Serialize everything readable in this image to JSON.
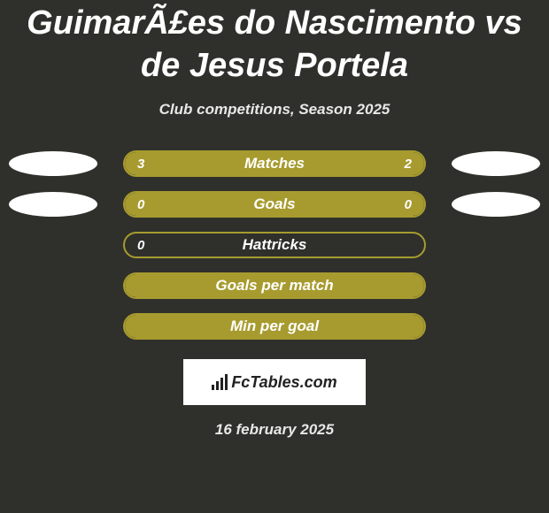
{
  "title": "GuimarÃ£es do Nascimento vs de Jesus Portela",
  "subtitle": "Club competitions, Season 2025",
  "date": "16 february 2025",
  "logo_text": "FcTables.com",
  "colors": {
    "background": "#2f302b",
    "accent": "#a79b2f",
    "oval": "#ffffff",
    "text": "#ffffff"
  },
  "stats": [
    {
      "label": "Matches",
      "left_value": "3",
      "right_value": "2",
      "left_fill_pct": 55,
      "right_fill_pct": 45,
      "show_left_oval": true,
      "show_right_oval": true,
      "fill_mode": "split"
    },
    {
      "label": "Goals",
      "left_value": "0",
      "right_value": "0",
      "left_fill_pct": 0,
      "right_fill_pct": 0,
      "show_left_oval": true,
      "show_right_oval": true,
      "fill_mode": "full"
    },
    {
      "label": "Hattricks",
      "left_value": "0",
      "right_value": "",
      "left_fill_pct": 0,
      "right_fill_pct": 0,
      "show_left_oval": false,
      "show_right_oval": false,
      "fill_mode": "none"
    },
    {
      "label": "Goals per match",
      "left_value": "",
      "right_value": "",
      "left_fill_pct": 0,
      "right_fill_pct": 0,
      "show_left_oval": false,
      "show_right_oval": false,
      "fill_mode": "full"
    },
    {
      "label": "Min per goal",
      "left_value": "",
      "right_value": "",
      "left_fill_pct": 0,
      "right_fill_pct": 0,
      "show_left_oval": false,
      "show_right_oval": false,
      "fill_mode": "full"
    }
  ]
}
